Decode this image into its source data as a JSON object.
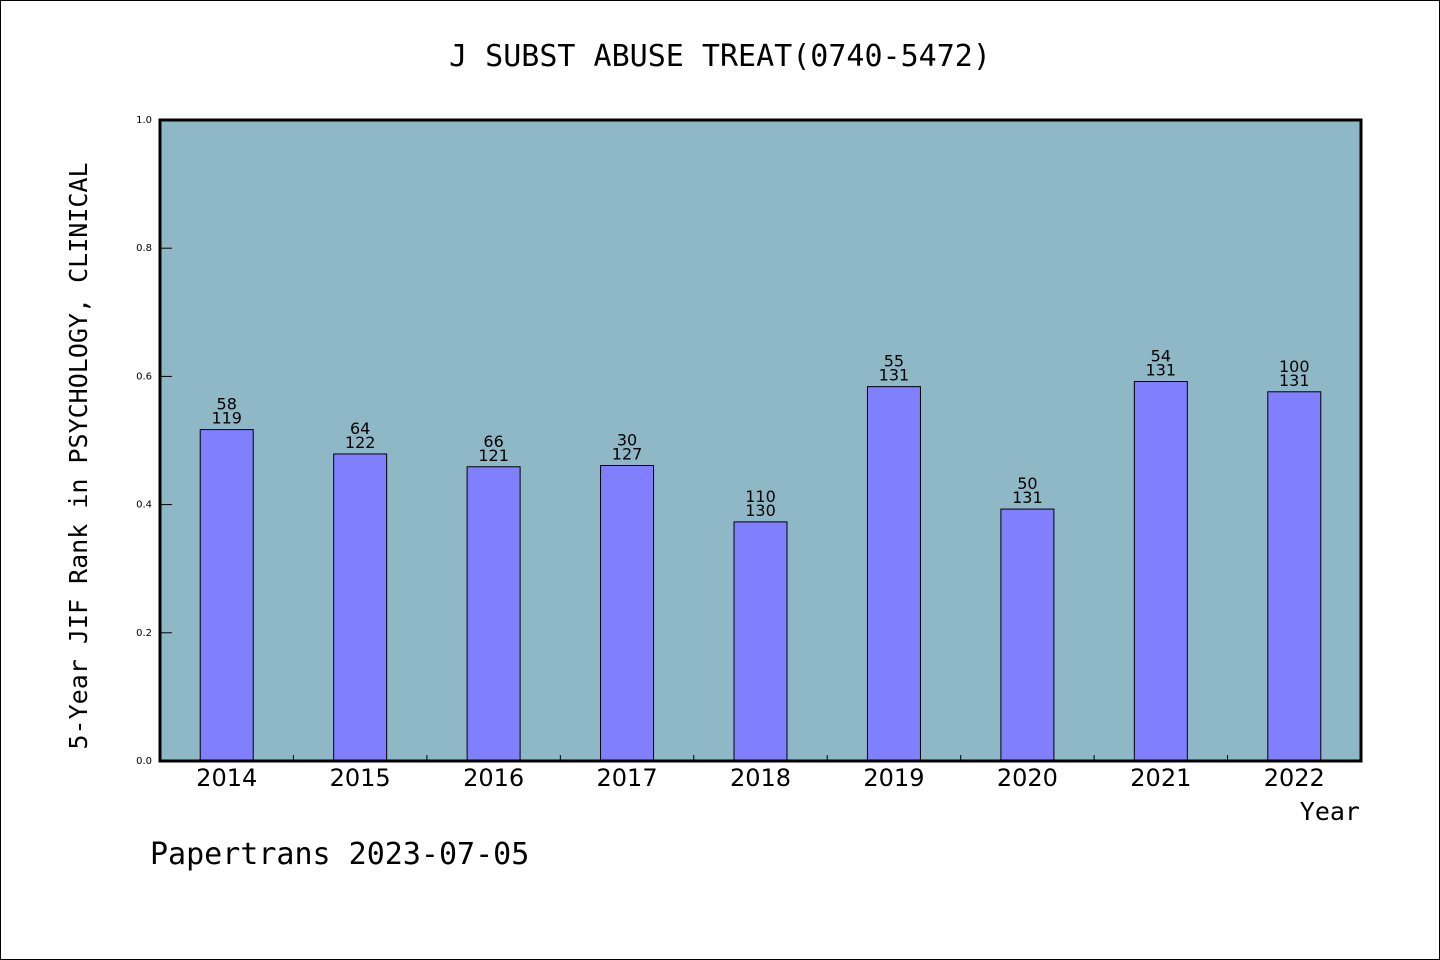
{
  "footer": "Papertrans 2023-07-05",
  "chart_data": {
    "type": "bar",
    "title": "J SUBST ABUSE TREAT(0740-5472)",
    "xlabel": "Year",
    "ylabel": "5-Year JIF Rank in PSYCHOLOGY, CLINICAL",
    "ylim": [
      0,
      1.0
    ],
    "yticks": [
      "0.0",
      "0.2",
      "0.4",
      "0.6",
      "0.8",
      "1.0"
    ],
    "grid": false,
    "categories": [
      "2014",
      "2015",
      "2016",
      "2017",
      "2018",
      "2019",
      "2020",
      "2021",
      "2022"
    ],
    "values": [
      0.517,
      0.479,
      0.459,
      0.461,
      0.373,
      0.584,
      0.393,
      0.592,
      0.576
    ],
    "labels_top": [
      "58",
      "64",
      "66",
      "30",
      "110",
      "55",
      "50",
      "54",
      "100"
    ],
    "labels_bottom": [
      "119",
      "122",
      "121",
      "127",
      "130",
      "131",
      "131",
      "131",
      "131"
    ],
    "colors": {
      "plot_bg": "#8fb8c7",
      "bar": "#8080ff",
      "bar_edge": "#000000"
    }
  }
}
